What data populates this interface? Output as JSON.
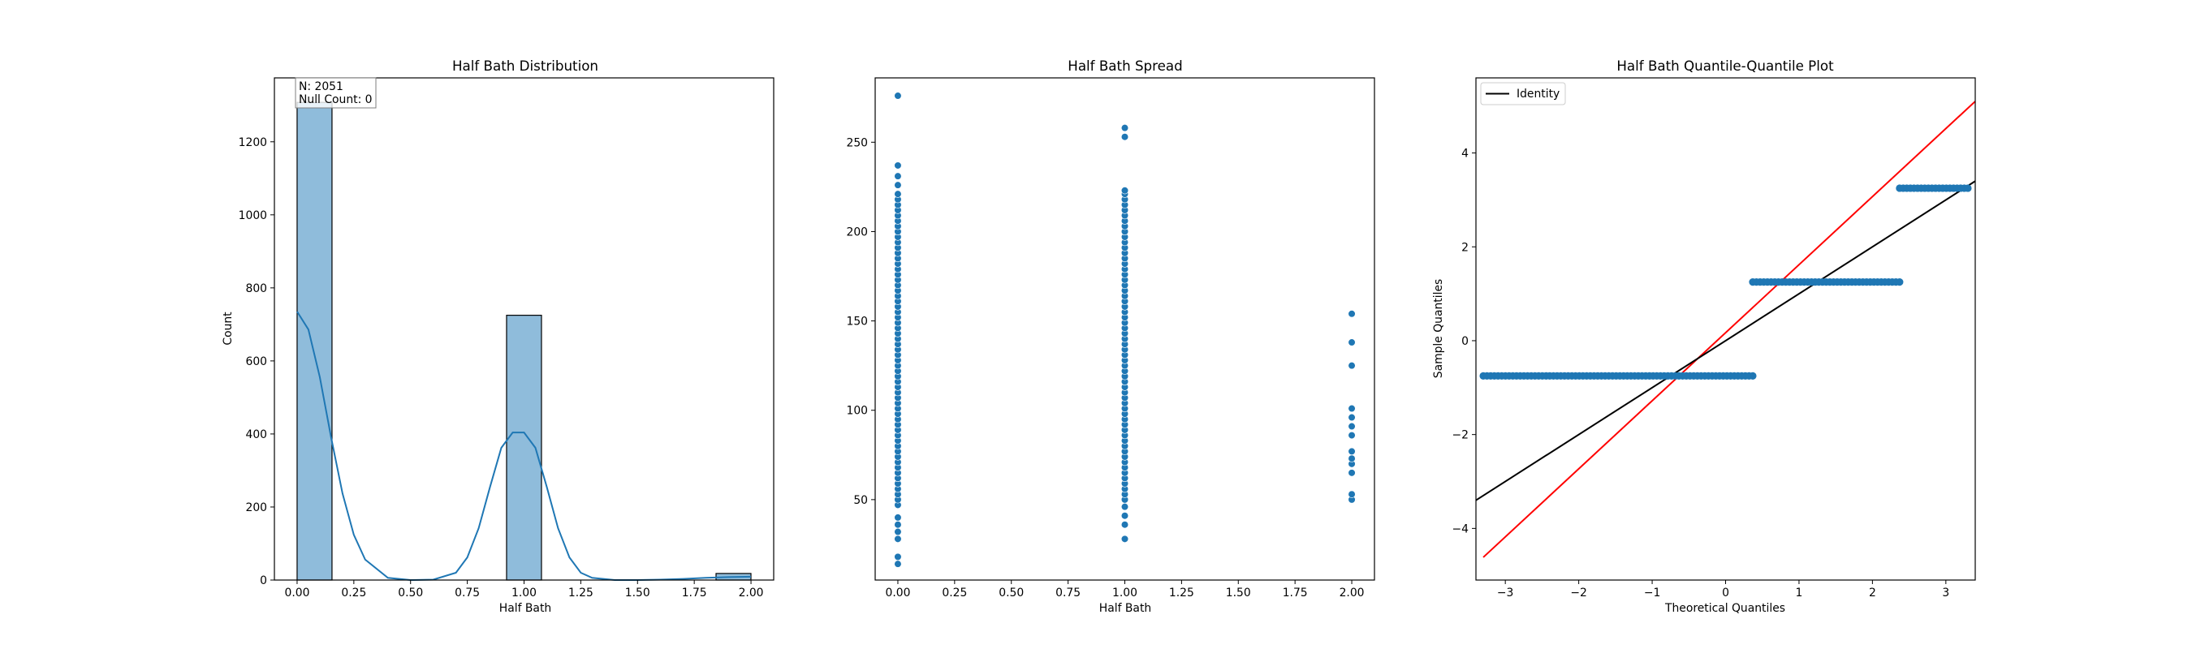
{
  "chart_data": [
    {
      "type": "bar",
      "subtype": "histogram-with-kde",
      "title": "Half Bath Distribution",
      "xlabel": "Half Bath",
      "ylabel": "Count",
      "xlim": [
        -0.1,
        2.1
      ],
      "ylim": [
        0,
        1375
      ],
      "xticks": [
        0.0,
        0.25,
        0.5,
        0.75,
        1.0,
        1.25,
        1.5,
        1.75,
        2.0
      ],
      "xtick_labels": [
        "0.00",
        "0.25",
        "0.50",
        "0.75",
        "1.00",
        "1.25",
        "1.50",
        "1.75",
        "2.00"
      ],
      "yticks": [
        0,
        200,
        400,
        600,
        800,
        1000,
        1200
      ],
      "ytick_labels": [
        "0",
        "200",
        "400",
        "600",
        "800",
        "1000",
        "1200"
      ],
      "bin_width": 0.1538,
      "bins": [
        {
          "start": 0.0,
          "count": 1308
        },
        {
          "start": 0.923,
          "count": 725
        },
        {
          "start": 1.846,
          "count": 18
        }
      ],
      "kde": {
        "x": [
          0.0,
          0.05,
          0.1,
          0.15,
          0.2,
          0.25,
          0.3,
          0.4,
          0.5,
          0.6,
          0.7,
          0.75,
          0.8,
          0.85,
          0.9,
          0.95,
          1.0,
          1.05,
          1.1,
          1.15,
          1.2,
          1.25,
          1.3,
          1.4,
          1.5,
          1.6,
          1.7,
          1.8,
          1.9,
          2.0
        ],
        "y": [
          735,
          686,
          556,
          390,
          237,
          124,
          56,
          6,
          0,
          1,
          20,
          62,
          142,
          255,
          362,
          404,
          404,
          362,
          255,
          142,
          62,
          20,
          6,
          0,
          0,
          1,
          3,
          6,
          8,
          9
        ]
      },
      "stats_box": [
        "N: 2051",
        "Null Count: 0"
      ],
      "color": "#1f77b4",
      "bar_fill": "#8fbcdb"
    },
    {
      "type": "scatter",
      "title": "Half Bath Spread",
      "xlabel": "Half Bath",
      "ylabel": "",
      "xlim": [
        -0.1,
        2.1
      ],
      "ylim": [
        5,
        286
      ],
      "xticks": [
        0.0,
        0.25,
        0.5,
        0.75,
        1.0,
        1.25,
        1.5,
        1.75,
        2.0
      ],
      "xtick_labels": [
        "0.00",
        "0.25",
        "0.50",
        "0.75",
        "1.00",
        "1.25",
        "1.50",
        "1.75",
        "2.00"
      ],
      "yticks": [
        50,
        100,
        150,
        200,
        250
      ],
      "ytick_labels": [
        "50",
        "100",
        "150",
        "200",
        "250"
      ],
      "groups": [
        {
          "x": 0.0,
          "y": [
            14,
            18,
            28,
            32,
            36,
            40,
            47,
            50,
            53,
            56,
            59,
            62,
            65,
            68,
            71,
            74,
            77,
            80,
            83,
            86,
            89,
            92,
            95,
            98,
            101,
            104,
            107,
            110,
            113,
            116,
            119,
            122,
            125,
            128,
            131,
            134,
            137,
            140,
            143,
            146,
            149,
            152,
            155,
            158,
            161,
            164,
            167,
            170,
            173,
            176,
            179,
            182,
            185,
            188,
            191,
            194,
            197,
            200,
            203,
            206,
            209,
            212,
            215,
            218,
            221,
            226,
            231,
            237,
            276
          ]
        },
        {
          "x": 1.0,
          "y": [
            28,
            36,
            41,
            46,
            50,
            53,
            56,
            59,
            62,
            65,
            68,
            71,
            74,
            77,
            80,
            83,
            86,
            89,
            92,
            95,
            98,
            101,
            104,
            107,
            110,
            113,
            116,
            119,
            122,
            125,
            128,
            131,
            134,
            137,
            140,
            143,
            146,
            149,
            152,
            155,
            158,
            161,
            164,
            167,
            170,
            173,
            176,
            179,
            182,
            185,
            188,
            191,
            194,
            197,
            200,
            203,
            206,
            209,
            212,
            215,
            218,
            221,
            223,
            253,
            258
          ]
        },
        {
          "x": 2.0,
          "y": [
            50,
            53,
            65,
            70,
            73,
            77,
            86,
            91,
            96,
            101,
            125,
            138,
            154
          ]
        }
      ],
      "color": "#1f77b4"
    },
    {
      "type": "scatter",
      "subtype": "qq-plot",
      "title": "Half Bath Quantile-Quantile Plot",
      "xlabel": "Theoretical Quantiles",
      "ylabel": "Sample Quantiles",
      "xlim": [
        -3.4,
        3.4
      ],
      "ylim": [
        -5.1,
        5.6
      ],
      "xticks": [
        -3,
        -2,
        -1,
        0,
        1,
        2,
        3
      ],
      "xtick_labels": [
        "−3",
        "−2",
        "−1",
        "0",
        "1",
        "2",
        "3"
      ],
      "yticks": [
        -4,
        -2,
        0,
        2,
        4
      ],
      "ytick_labels": [
        "−4",
        "−2",
        "0",
        "2",
        "4"
      ],
      "legend": {
        "entries": [
          "Identity"
        ],
        "placement": "top-left"
      },
      "sample_quantile_levels": [
        -0.75,
        1.25,
        3.25
      ],
      "segments": [
        {
          "level": -0.75,
          "x_from": -3.3,
          "x_to": 0.37
        },
        {
          "level": 1.25,
          "x_from": 0.37,
          "x_to": 2.37
        },
        {
          "level": 3.25,
          "x_from": 2.37,
          "x_to": 3.3
        }
      ],
      "identity_line": {
        "slope": 1.0,
        "intercept": 0.0,
        "color": "#000000"
      },
      "fit_line": {
        "slope": 1.45,
        "intercept": 0.17,
        "color": "#ff0000"
      },
      "color": "#1f77b4"
    }
  ]
}
